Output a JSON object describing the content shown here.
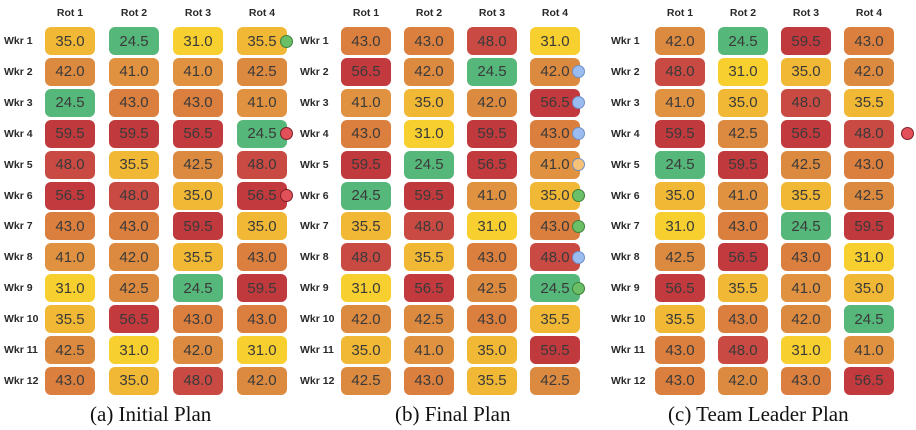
{
  "colors": {
    "24.5": "#56b77a",
    "31.0": "#f7cf2e",
    "35.0": "#f0b834",
    "35.5": "#f0b834",
    "41.0": "#e09241",
    "42.0": "#dc8a40",
    "42.5": "#dc8a40",
    "43.0": "#db7f3e",
    "48.0": "#c84a43",
    "56.5": "#c23a3e",
    "59.5": "#c0393d",
    "marker_green": "#6bbf66",
    "marker_red": "#e2505a",
    "marker_blue": "#9bbcf0",
    "marker_orange": "#f6c27a"
  },
  "panels": [
    {
      "caption": "(a) Initial Plan",
      "col_headers": [
        "Rot 1",
        "Rot 2",
        "Rot 3",
        "Rot 4"
      ],
      "row_labels": [
        "Wkr 1",
        "Wkr 2",
        "Wkr 3",
        "Wkr 4",
        "Wkr 5",
        "Wkr 6",
        "Wkr 7",
        "Wkr 8",
        "Wkr 9",
        "Wkr 10",
        "Wkr 11",
        "Wkr 12"
      ],
      "rows": [
        [
          "35.0",
          "24.5",
          "31.0",
          "35.5"
        ],
        [
          "42.0",
          "41.0",
          "41.0",
          "42.5"
        ],
        [
          "24.5",
          "43.0",
          "43.0",
          "41.0"
        ],
        [
          "59.5",
          "59.5",
          "56.5",
          "24.5"
        ],
        [
          "48.0",
          "35.5",
          "42.5",
          "48.0"
        ],
        [
          "56.5",
          "48.0",
          "35.0",
          "56.5"
        ],
        [
          "43.0",
          "43.0",
          "59.5",
          "35.0"
        ],
        [
          "41.0",
          "42.0",
          "35.5",
          "43.0"
        ],
        [
          "31.0",
          "42.5",
          "24.5",
          "59.5"
        ],
        [
          "35.5",
          "56.5",
          "43.0",
          "43.0"
        ],
        [
          "42.5",
          "31.0",
          "42.0",
          "31.0"
        ],
        [
          "43.0",
          "35.0",
          "48.0",
          "42.0"
        ]
      ],
      "markers": [
        "green",
        "",
        "",
        "red",
        "",
        "red",
        "",
        "",
        "",
        "",
        "",
        ""
      ]
    },
    {
      "caption": "(b) Final Plan",
      "col_headers": [
        "Rot 1",
        "Rot 2",
        "Rot 3",
        "Rot 4"
      ],
      "row_labels": [
        "Wkr 1",
        "Wkr 2",
        "Wkr 3",
        "Wkr 4",
        "Wkr 5",
        "Wkr 6",
        "Wkr 7",
        "Wkr 8",
        "Wkr 9",
        "Wkr 10",
        "Wkr 11",
        "Wkr 12"
      ],
      "rows": [
        [
          "43.0",
          "43.0",
          "48.0",
          "31.0"
        ],
        [
          "56.5",
          "42.0",
          "24.5",
          "42.0"
        ],
        [
          "41.0",
          "35.0",
          "42.0",
          "56.5"
        ],
        [
          "43.0",
          "31.0",
          "59.5",
          "43.0"
        ],
        [
          "59.5",
          "24.5",
          "56.5",
          "41.0"
        ],
        [
          "24.5",
          "59.5",
          "41.0",
          "35.0"
        ],
        [
          "35.5",
          "48.0",
          "31.0",
          "43.0"
        ],
        [
          "48.0",
          "35.5",
          "43.0",
          "48.0"
        ],
        [
          "31.0",
          "56.5",
          "42.5",
          "24.5"
        ],
        [
          "42.0",
          "42.5",
          "43.0",
          "35.5"
        ],
        [
          "35.0",
          "41.0",
          "35.0",
          "59.5"
        ],
        [
          "42.5",
          "43.0",
          "35.5",
          "42.5"
        ]
      ],
      "markers": [
        "",
        "blue",
        "blue",
        "blue",
        "orange",
        "green",
        "green",
        "blue",
        "green",
        "",
        "",
        ""
      ]
    },
    {
      "caption": "(c) Team Leader Plan",
      "col_headers": [
        "Rot 1",
        "Rot 2",
        "Rot 3",
        "Rot 4"
      ],
      "row_labels": [
        "Wkr 1",
        "Wkr 2",
        "Wkr 3",
        "Wkr 4",
        "Wkr 5",
        "Wkr 6",
        "Wkr 7",
        "Wkr 8",
        "Wkr 9",
        "Wkr 10",
        "Wkr 11",
        "Wkr 12"
      ],
      "rows": [
        [
          "42.0",
          "24.5",
          "59.5",
          "43.0"
        ],
        [
          "48.0",
          "31.0",
          "35.0",
          "42.0"
        ],
        [
          "41.0",
          "35.0",
          "48.0",
          "35.5"
        ],
        [
          "59.5",
          "42.5",
          "56.5",
          "48.0"
        ],
        [
          "24.5",
          "59.5",
          "42.5",
          "43.0"
        ],
        [
          "35.0",
          "41.0",
          "35.5",
          "42.5"
        ],
        [
          "31.0",
          "43.0",
          "24.5",
          "59.5"
        ],
        [
          "42.5",
          "56.5",
          "43.0",
          "31.0"
        ],
        [
          "56.5",
          "35.5",
          "41.0",
          "35.0"
        ],
        [
          "35.5",
          "43.0",
          "42.0",
          "24.5"
        ],
        [
          "43.0",
          "48.0",
          "31.0",
          "41.0"
        ],
        [
          "43.0",
          "42.0",
          "43.0",
          "56.5"
        ]
      ],
      "markers": [
        "",
        "",
        "",
        "red",
        "",
        "",
        "",
        "",
        "",
        "",
        "",
        ""
      ]
    }
  ]
}
